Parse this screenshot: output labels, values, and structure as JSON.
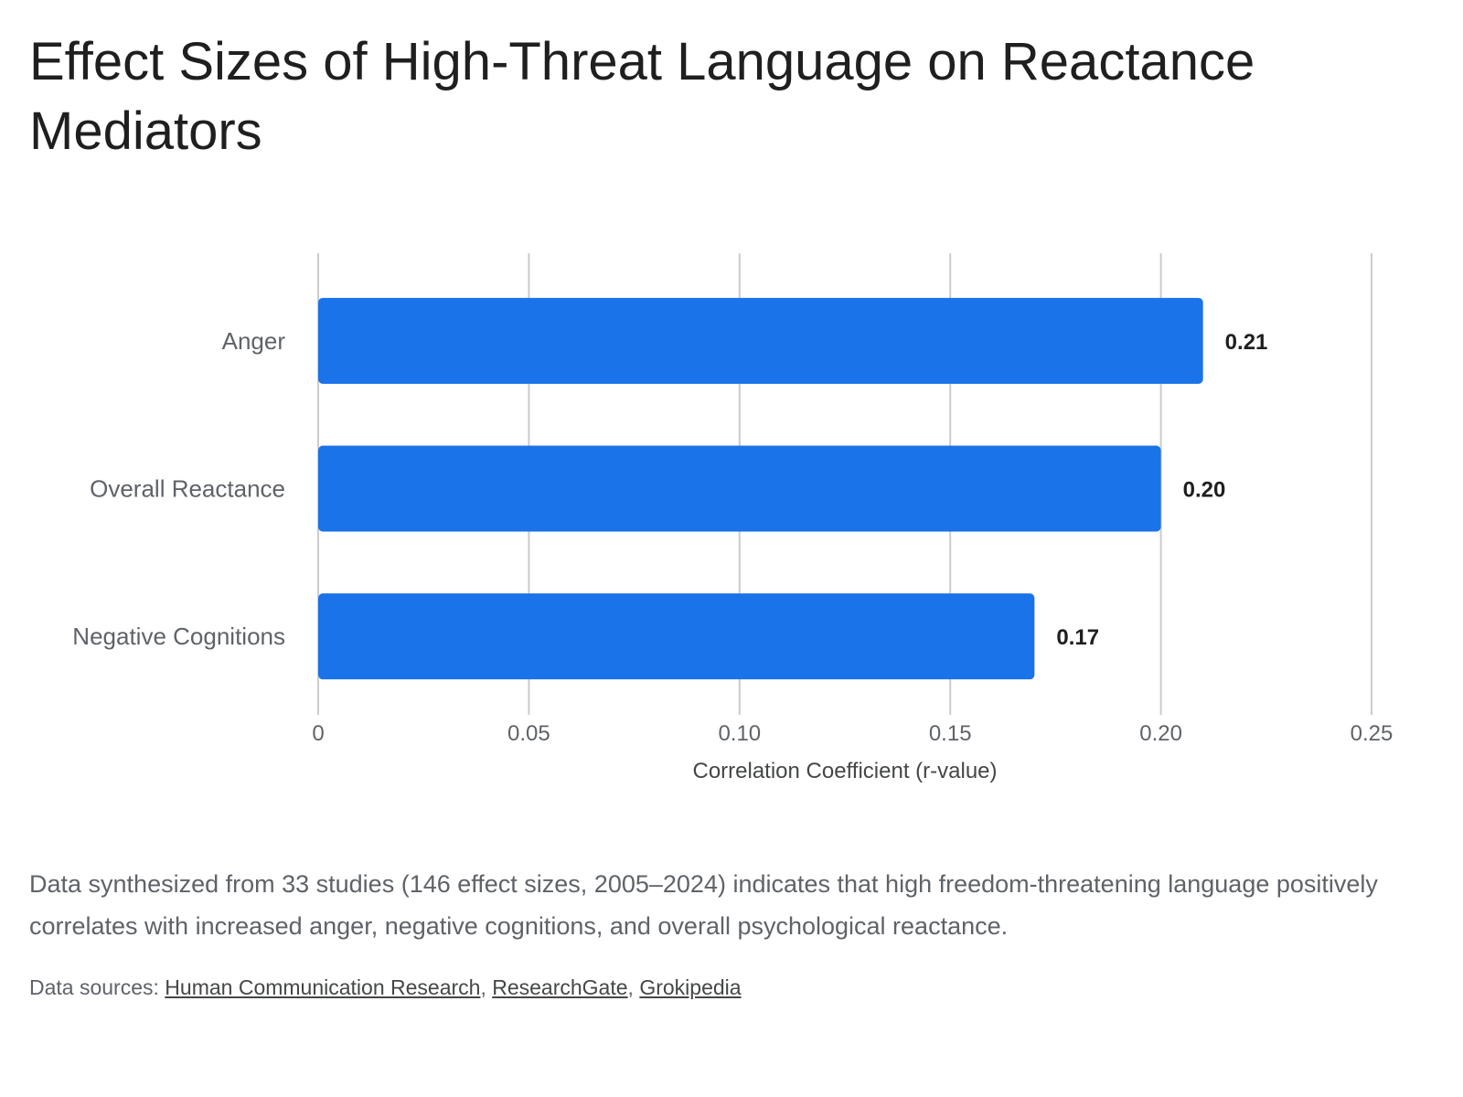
{
  "title": "Effect Sizes of High-Threat Language on Reactance Mediators",
  "chart_data": {
    "type": "bar",
    "orientation": "horizontal",
    "categories": [
      "Anger",
      "Overall Reactance",
      "Negative Cognitions"
    ],
    "values": [
      0.21,
      0.2,
      0.17
    ],
    "value_labels": [
      "0.21",
      "0.20",
      "0.17"
    ],
    "xlabel": "Correlation Coefficient (r-value)",
    "ylabel": "",
    "xlim": [
      0,
      0.25
    ],
    "ticks": [
      0,
      0.05,
      0.1,
      0.15,
      0.2,
      0.25
    ],
    "tick_labels": [
      "0",
      "0.05",
      "0.10",
      "0.15",
      "0.20",
      "0.25"
    ],
    "grid": true,
    "bar_color": "#1a73e8",
    "grid_color": "#cccccc"
  },
  "caption": "Data synthesized from 33 studies (146 effect sizes, 2005–2024) indicates that high freedom-threatening language positively correlates with increased anger, negative cognitions, and overall psychological reactance.",
  "sources": {
    "prefix": "Data sources: ",
    "links": [
      "Human Communication Research",
      "ResearchGate",
      "Grokipedia"
    ],
    "separator": ", "
  }
}
